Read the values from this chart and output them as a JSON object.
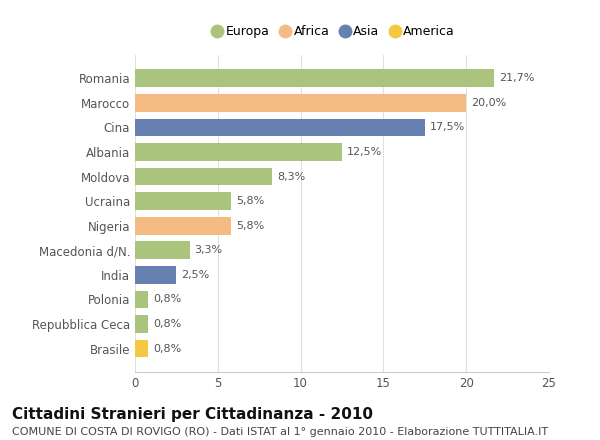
{
  "categories": [
    "Romania",
    "Marocco",
    "Cina",
    "Albania",
    "Moldova",
    "Ucraina",
    "Nigeria",
    "Macedonia d/N.",
    "India",
    "Polonia",
    "Repubblica Ceca",
    "Brasile"
  ],
  "values": [
    21.7,
    20.0,
    17.5,
    12.5,
    8.3,
    5.8,
    5.8,
    3.3,
    2.5,
    0.8,
    0.8,
    0.8
  ],
  "labels": [
    "21,7%",
    "20,0%",
    "17,5%",
    "12,5%",
    "8,3%",
    "5,8%",
    "5,8%",
    "3,3%",
    "2,5%",
    "0,8%",
    "0,8%",
    "0,8%"
  ],
  "colors": [
    "#aac47e",
    "#f4bc82",
    "#6680b0",
    "#aac47e",
    "#aac47e",
    "#aac47e",
    "#f4bc82",
    "#aac47e",
    "#6680b0",
    "#aac47e",
    "#aac47e",
    "#f5c842"
  ],
  "legend_labels": [
    "Europa",
    "Africa",
    "Asia",
    "America"
  ],
  "legend_colors": [
    "#aac47e",
    "#f4bc82",
    "#6680b0",
    "#f5c842"
  ],
  "title": "Cittadini Stranieri per Cittadinanza - 2010",
  "subtitle": "COMUNE DI COSTA DI ROVIGO (RO) - Dati ISTAT al 1° gennaio 2010 - Elaborazione TUTTITALIA.IT",
  "xlim": [
    0,
    25
  ],
  "xticks": [
    0,
    5,
    10,
    15,
    20,
    25
  ],
  "background_color": "#ffffff",
  "grid_color": "#e0e0e0",
  "bar_height": 0.72,
  "title_fontsize": 11,
  "subtitle_fontsize": 8,
  "label_fontsize": 8,
  "tick_fontsize": 8.5,
  "legend_fontsize": 9
}
